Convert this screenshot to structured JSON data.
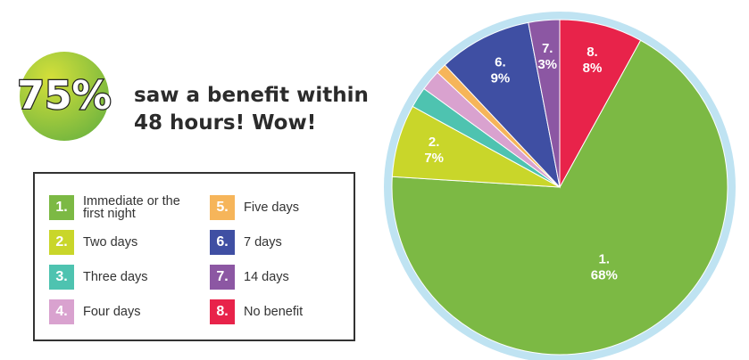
{
  "chart_data": {
    "type": "pie",
    "headline_figure": "75%",
    "headline": "saw a benefit within 48 hours! Wow!",
    "numbers": [
      "1.",
      "2.",
      "3.",
      "4.",
      "5.",
      "6.",
      "7.",
      "8."
    ],
    "categories": [
      "Immediate or the first night",
      "Two days",
      "Three days",
      "Four days",
      "Five days",
      "7 days",
      "14 days",
      "No benefit"
    ],
    "values": [
      68,
      7,
      2,
      2,
      1,
      9,
      3,
      8
    ],
    "value_labels": [
      "68%",
      "7%",
      null,
      null,
      null,
      "9%",
      "3%",
      "8%"
    ],
    "colors": [
      "#7cb944",
      "#c9d62a",
      "#4ec3b0",
      "#d9a2cf",
      "#f6b55a",
      "#3f4fa3",
      "#8c57a3",
      "#e8234a"
    ]
  }
}
